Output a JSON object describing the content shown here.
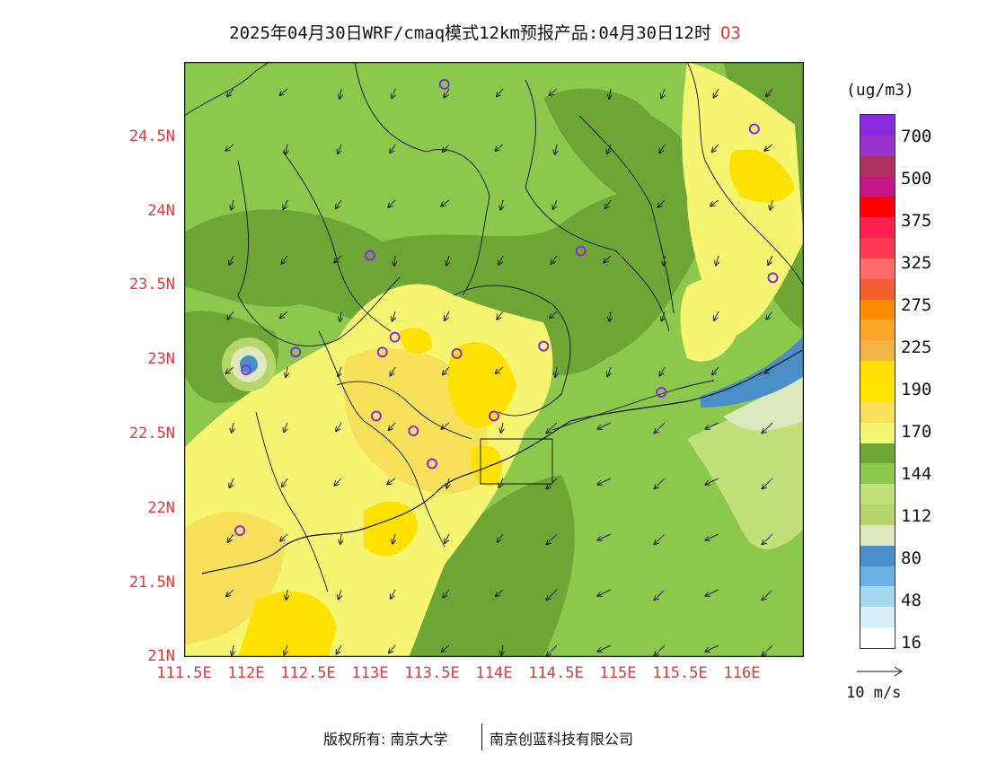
{
  "title": {
    "text": "2025年04月30日WRF/cmaq模式12km预报产品:04月30日12时",
    "variable": "O3"
  },
  "axes": {
    "y_labels": [
      "24.5N",
      "24N",
      "23.5N",
      "23N",
      "22.5N",
      "22N",
      "21.5N",
      "21N"
    ],
    "x_labels": [
      "111.5E",
      "112E",
      "112.5E",
      "113E",
      "113.5E",
      "114E",
      "114.5E",
      "115E",
      "115.5E",
      "116E"
    ]
  },
  "colorbar": {
    "unit": "(ug/m3)",
    "colors_top_to_bottom": [
      "#8a2be2",
      "#9932cc",
      "#b03060",
      "#c71585",
      "#ff0000",
      "#ff1f50",
      "#ff3a56",
      "#ff6a6a",
      "#f26030",
      "#ff8c00",
      "#ffa52a",
      "#f5b342",
      "#ffe100",
      "#ffe600",
      "#f7e15a",
      "#f5f572",
      "#6da635",
      "#8cc84c",
      "#c2e07a",
      "#b5d56b",
      "#dde8bf",
      "#4a8fc8",
      "#6ab0e0",
      "#a4d8f0",
      "#d6eefa",
      "#ffffff"
    ],
    "tick_labels": [
      "700",
      "500",
      "375",
      "325",
      "275",
      "225",
      "190",
      "170",
      "144",
      "112",
      "80",
      "48",
      "16"
    ]
  },
  "vector_legend": "10 m/s",
  "markers": [
    {
      "lon": 113.6,
      "lat": 24.85
    },
    {
      "lon": 116.1,
      "lat": 24.55
    },
    {
      "lon": 113.0,
      "lat": 23.7
    },
    {
      "lon": 114.7,
      "lat": 23.73
    },
    {
      "lon": 116.25,
      "lat": 23.55
    },
    {
      "lon": 112.4,
      "lat": 23.05
    },
    {
      "lon": 112.0,
      "lat": 22.93
    },
    {
      "lon": 113.1,
      "lat": 23.05
    },
    {
      "lon": 113.2,
      "lat": 23.15
    },
    {
      "lon": 113.7,
      "lat": 23.04
    },
    {
      "lon": 114.4,
      "lat": 23.09
    },
    {
      "lon": 113.05,
      "lat": 22.62
    },
    {
      "lon": 113.35,
      "lat": 22.52
    },
    {
      "lon": 114.0,
      "lat": 22.62
    },
    {
      "lon": 113.5,
      "lat": 22.3
    },
    {
      "lon": 115.35,
      "lat": 22.78
    },
    {
      "lon": 111.95,
      "lat": 21.85
    }
  ],
  "copyright": {
    "left": "版权所有: 南京大学",
    "right": "南京创蓝科技有限公司"
  }
}
